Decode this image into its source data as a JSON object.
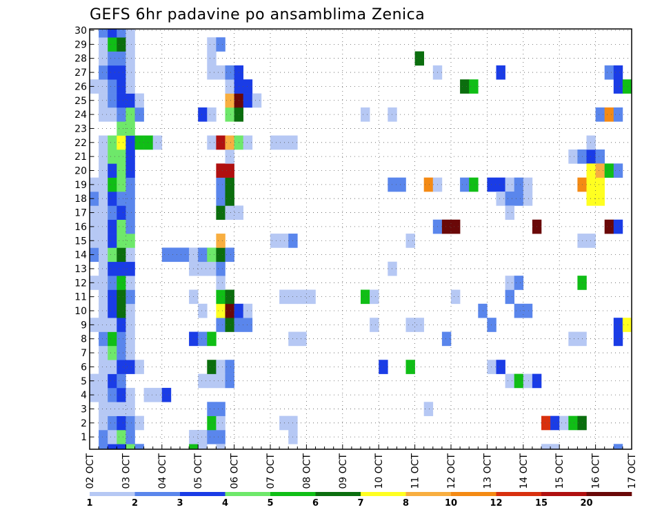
{
  "chart_data": {
    "type": "heatmap",
    "title": "GEFS 6hr padavine po ansamblima Zenica",
    "xlabel": "",
    "ylabel": "",
    "x_tick_labels": [
      "02 OCT",
      "03 OCT",
      "04 OCT",
      "05 OCT",
      "06 OCT",
      "07 OCT",
      "08 OCT",
      "09 OCT",
      "10 OCT",
      "11 OCT",
      "12 OCT",
      "13 OCT",
      "14 OCT",
      "15 OCT",
      "16 OCT",
      "17 OCT"
    ],
    "y_tick_labels": [
      "1",
      "2",
      "3",
      "4",
      "5",
      "6",
      "7",
      "8",
      "9",
      "10",
      "11",
      "12",
      "13",
      "14",
      "15",
      "16",
      "17",
      "18",
      "19",
      "20",
      "21",
      "22",
      "23",
      "24",
      "25",
      "26",
      "27",
      "28",
      "29",
      "30"
    ],
    "time_steps": 61,
    "members": 30,
    "colorbar": {
      "labels": [
        "1",
        "2",
        "3",
        "4",
        "5",
        "6",
        "7",
        "8",
        "10",
        "12",
        "15",
        "20"
      ],
      "colors": [
        "#b6c8f4",
        "#5a86ec",
        "#1a3ce6",
        "#6ee86a",
        "#10be16",
        "#0b6e0e",
        "#ffff20",
        "#f8ae40",
        "#f48a14",
        "#d8300e",
        "#b01010",
        "#6a0808"
      ]
    },
    "cells": [
      [
        0,
        1,
        1
      ],
      [
        0,
        2,
        2
      ],
      [
        0,
        3,
        2
      ],
      [
        0,
        4,
        3
      ],
      [
        0,
        5,
        1
      ],
      [
        1,
        1,
        1
      ],
      [
        1,
        2,
        0
      ],
      [
        1,
        3,
        3
      ],
      [
        1,
        4,
        1
      ],
      [
        2,
        1,
        0
      ],
      [
        2,
        2,
        1
      ],
      [
        2,
        3,
        2
      ],
      [
        2,
        4,
        1
      ],
      [
        2,
        5,
        0
      ],
      [
        3,
        1,
        0
      ],
      [
        3,
        2,
        0
      ],
      [
        3,
        3,
        0
      ],
      [
        3,
        4,
        0
      ],
      [
        4,
        0,
        0
      ],
      [
        4,
        1,
        0
      ],
      [
        4,
        2,
        1
      ],
      [
        4,
        3,
        2
      ],
      [
        4,
        4,
        0
      ],
      [
        5,
        0,
        0
      ],
      [
        5,
        1,
        0
      ],
      [
        5,
        2,
        2
      ],
      [
        5,
        3,
        1
      ],
      [
        6,
        1,
        0
      ],
      [
        6,
        2,
        0
      ],
      [
        6,
        3,
        2
      ],
      [
        6,
        4,
        2
      ],
      [
        6,
        5,
        0
      ],
      [
        7,
        1,
        0
      ],
      [
        7,
        2,
        3
      ],
      [
        7,
        3,
        1
      ],
      [
        7,
        4,
        0
      ],
      [
        8,
        1,
        1
      ],
      [
        8,
        2,
        4
      ],
      [
        8,
        3,
        1
      ],
      [
        8,
        4,
        0
      ],
      [
        9,
        0,
        0
      ],
      [
        9,
        1,
        0
      ],
      [
        9,
        2,
        0
      ],
      [
        9,
        3,
        2
      ],
      [
        9,
        4,
        0
      ],
      [
        10,
        1,
        0
      ],
      [
        10,
        2,
        2
      ],
      [
        10,
        3,
        5
      ],
      [
        10,
        4,
        0
      ],
      [
        11,
        1,
        0
      ],
      [
        11,
        2,
        2
      ],
      [
        11,
        3,
        5
      ],
      [
        11,
        4,
        1
      ],
      [
        12,
        0,
        0
      ],
      [
        12,
        1,
        0
      ],
      [
        12,
        2,
        1
      ],
      [
        12,
        3,
        4
      ],
      [
        12,
        4,
        0
      ],
      [
        13,
        1,
        0
      ],
      [
        13,
        2,
        2
      ],
      [
        13,
        3,
        2
      ],
      [
        13,
        4,
        2
      ],
      [
        14,
        0,
        1
      ],
      [
        14,
        1,
        0
      ],
      [
        14,
        2,
        3
      ],
      [
        14,
        3,
        5
      ],
      [
        14,
        4,
        0
      ],
      [
        15,
        0,
        0
      ],
      [
        15,
        1,
        0
      ],
      [
        15,
        2,
        2
      ],
      [
        15,
        3,
        3
      ],
      [
        15,
        4,
        3
      ],
      [
        16,
        0,
        0
      ],
      [
        16,
        1,
        0
      ],
      [
        16,
        2,
        2
      ],
      [
        16,
        3,
        3
      ],
      [
        16,
        4,
        1
      ],
      [
        17,
        0,
        0
      ],
      [
        17,
        1,
        0
      ],
      [
        17,
        2,
        1
      ],
      [
        17,
        3,
        2
      ],
      [
        17,
        4,
        1
      ],
      [
        18,
        0,
        1
      ],
      [
        18,
        1,
        0
      ],
      [
        18,
        2,
        2
      ],
      [
        18,
        3,
        1
      ],
      [
        18,
        4,
        1
      ],
      [
        19,
        0,
        0
      ],
      [
        19,
        1,
        0
      ],
      [
        19,
        2,
        4
      ],
      [
        19,
        3,
        3
      ],
      [
        19,
        4,
        1
      ],
      [
        20,
        1,
        0
      ],
      [
        20,
        2,
        2
      ],
      [
        20,
        3,
        3
      ],
      [
        20,
        4,
        2
      ],
      [
        21,
        1,
        0
      ],
      [
        21,
        2,
        3
      ],
      [
        21,
        3,
        3
      ],
      [
        21,
        4,
        2
      ],
      [
        22,
        1,
        0
      ],
      [
        22,
        2,
        3
      ],
      [
        22,
        3,
        6
      ],
      [
        22,
        4,
        2
      ],
      [
        22,
        5,
        4
      ],
      [
        22,
        6,
        4
      ],
      [
        22,
        7,
        0
      ],
      [
        23,
        3,
        3
      ],
      [
        23,
        4,
        3
      ],
      [
        24,
        1,
        0
      ],
      [
        24,
        2,
        0
      ],
      [
        24,
        3,
        1
      ],
      [
        24,
        4,
        3
      ],
      [
        24,
        5,
        1
      ],
      [
        25,
        1,
        0
      ],
      [
        25,
        2,
        1
      ],
      [
        25,
        3,
        2
      ],
      [
        25,
        4,
        2
      ],
      [
        25,
        5,
        0
      ],
      [
        26,
        0,
        0
      ],
      [
        26,
        1,
        0
      ],
      [
        26,
        2,
        1
      ],
      [
        26,
        3,
        2
      ],
      [
        26,
        4,
        0
      ],
      [
        27,
        1,
        1
      ],
      [
        27,
        2,
        2
      ],
      [
        27,
        3,
        2
      ],
      [
        27,
        4,
        0
      ],
      [
        28,
        1,
        0
      ],
      [
        28,
        2,
        1
      ],
      [
        28,
        3,
        1
      ],
      [
        28,
        4,
        0
      ],
      [
        29,
        1,
        0
      ],
      [
        29,
        2,
        4
      ],
      [
        29,
        3,
        5
      ],
      [
        29,
        4,
        0
      ],
      [
        30,
        1,
        1
      ],
      [
        30,
        2,
        2
      ],
      [
        30,
        3,
        1
      ],
      [
        30,
        4,
        0
      ],
      [
        14,
        8,
        1
      ],
      [
        14,
        9,
        1
      ],
      [
        14,
        10,
        1
      ],
      [
        0,
        11,
        4
      ],
      [
        0,
        12,
        0
      ],
      [
        1,
        11,
        0
      ],
      [
        1,
        12,
        0
      ],
      [
        1,
        13,
        1
      ],
      [
        1,
        14,
        1
      ],
      [
        2,
        13,
        4
      ],
      [
        2,
        14,
        0
      ],
      [
        3,
        13,
        1
      ],
      [
        3,
        14,
        1
      ],
      [
        4,
        6,
        0
      ],
      [
        4,
        7,
        0
      ],
      [
        4,
        8,
        2
      ],
      [
        5,
        12,
        0
      ],
      [
        5,
        13,
        0
      ],
      [
        5,
        14,
        0
      ],
      [
        5,
        15,
        1
      ],
      [
        6,
        13,
        5
      ],
      [
        6,
        14,
        0
      ],
      [
        6,
        15,
        1
      ],
      [
        8,
        11,
        2
      ],
      [
        8,
        12,
        1
      ],
      [
        8,
        13,
        4
      ],
      [
        9,
        14,
        1
      ],
      [
        9,
        15,
        5
      ],
      [
        9,
        16,
        1
      ],
      [
        9,
        17,
        1
      ],
      [
        10,
        12,
        0
      ],
      [
        10,
        14,
        6
      ],
      [
        10,
        15,
        11
      ],
      [
        10,
        16,
        2
      ],
      [
        10,
        17,
        0
      ],
      [
        11,
        11,
        0
      ],
      [
        11,
        14,
        4
      ],
      [
        11,
        15,
        5
      ],
      [
        12,
        14,
        0
      ],
      [
        13,
        11,
        0
      ],
      [
        13,
        12,
        0
      ],
      [
        13,
        13,
        0
      ],
      [
        13,
        14,
        1
      ],
      [
        14,
        11,
        0
      ],
      [
        14,
        12,
        1
      ],
      [
        14,
        13,
        3
      ],
      [
        14,
        14,
        5
      ],
      [
        14,
        15,
        1
      ],
      [
        15,
        14,
        7
      ],
      [
        17,
        14,
        5
      ],
      [
        17,
        15,
        0
      ],
      [
        17,
        16,
        0
      ],
      [
        18,
        14,
        1
      ],
      [
        18,
        15,
        5
      ],
      [
        19,
        14,
        1
      ],
      [
        19,
        15,
        5
      ],
      [
        20,
        14,
        10
      ],
      [
        20,
        15,
        10
      ],
      [
        21,
        15,
        0
      ],
      [
        22,
        13,
        0
      ],
      [
        22,
        14,
        10
      ],
      [
        22,
        15,
        7
      ],
      [
        22,
        16,
        3
      ],
      [
        22,
        17,
        0
      ],
      [
        24,
        12,
        2
      ],
      [
        24,
        13,
        0
      ],
      [
        24,
        15,
        3
      ],
      [
        24,
        16,
        5
      ],
      [
        25,
        15,
        7
      ],
      [
        25,
        16,
        11
      ],
      [
        25,
        17,
        2
      ],
      [
        25,
        18,
        0
      ],
      [
        26,
        15,
        0
      ],
      [
        26,
        16,
        2
      ],
      [
        26,
        17,
        2
      ],
      [
        27,
        13,
        0
      ],
      [
        27,
        14,
        0
      ],
      [
        27,
        15,
        1
      ],
      [
        27,
        16,
        2
      ],
      [
        28,
        13,
        0
      ],
      [
        29,
        13,
        0
      ],
      [
        29,
        14,
        1
      ],
      [
        0,
        12,
        0
      ],
      [
        0,
        14,
        0
      ],
      [
        2,
        21,
        0
      ],
      [
        2,
        22,
        0
      ],
      [
        15,
        20,
        0
      ],
      [
        15,
        21,
        0
      ],
      [
        15,
        22,
        1
      ],
      [
        8,
        22,
        0
      ],
      [
        8,
        23,
        0
      ],
      [
        11,
        21,
        0
      ],
      [
        11,
        22,
        0
      ],
      [
        11,
        23,
        0
      ],
      [
        11,
        24,
        0
      ],
      [
        22,
        20,
        0
      ],
      [
        22,
        21,
        0
      ],
      [
        22,
        22,
        0
      ],
      [
        1,
        22,
        0
      ],
      [
        24,
        30,
        0
      ],
      [
        11,
        30,
        4
      ],
      [
        11,
        31,
        0
      ],
      [
        9,
        31,
        0
      ],
      [
        6,
        32,
        2
      ],
      [
        13,
        33,
        0
      ],
      [
        24,
        33,
        0
      ],
      [
        19,
        33,
        1
      ],
      [
        19,
        34,
        1
      ],
      [
        3,
        37,
        0
      ],
      [
        6,
        35,
        4
      ],
      [
        9,
        35,
        0
      ],
      [
        9,
        36,
        0
      ],
      [
        15,
        35,
        0
      ],
      [
        19,
        37,
        8
      ],
      [
        19,
        38,
        0
      ],
      [
        28,
        36,
        5
      ],
      [
        27,
        38,
        0
      ],
      [
        16,
        38,
        1
      ],
      [
        16,
        39,
        11
      ],
      [
        16,
        40,
        11
      ],
      [
        8,
        39,
        1
      ],
      [
        11,
        40,
        0
      ],
      [
        19,
        41,
        1
      ],
      [
        19,
        42,
        4
      ],
      [
        26,
        41,
        5
      ],
      [
        26,
        42,
        4
      ],
      [
        6,
        44,
        0
      ],
      [
        6,
        45,
        2
      ],
      [
        10,
        43,
        1
      ],
      [
        19,
        44,
        2
      ],
      [
        19,
        45,
        2
      ],
      [
        19,
        46,
        0
      ],
      [
        19,
        47,
        1
      ],
      [
        19,
        48,
        0
      ],
      [
        27,
        45,
        2
      ],
      [
        9,
        44,
        1
      ],
      [
        18,
        45,
        0
      ],
      [
        18,
        46,
        1
      ],
      [
        18,
        47,
        1
      ],
      [
        17,
        46,
        0
      ],
      [
        5,
        46,
        0
      ],
      [
        5,
        47,
        4
      ],
      [
        5,
        48,
        0
      ],
      [
        5,
        49,
        2
      ],
      [
        11,
        46,
        1
      ],
      [
        10,
        47,
        1
      ],
      [
        10,
        48,
        1
      ],
      [
        12,
        46,
        0
      ],
      [
        12,
        47,
        1
      ],
      [
        16,
        49,
        11
      ],
      [
        2,
        50,
        9
      ],
      [
        2,
        51,
        2
      ],
      [
        2,
        52,
        0
      ],
      [
        2,
        53,
        4
      ],
      [
        2,
        54,
        5
      ],
      [
        8,
        53,
        0
      ],
      [
        8,
        54,
        0
      ],
      [
        21,
        53,
        0
      ],
      [
        21,
        54,
        1
      ],
      [
        21,
        55,
        2
      ],
      [
        21,
        56,
        1
      ],
      [
        18,
        48,
        0
      ],
      [
        24,
        56,
        1
      ],
      [
        24,
        57,
        8
      ],
      [
        24,
        58,
        1
      ],
      [
        22,
        55,
        0
      ],
      [
        12,
        54,
        4
      ],
      [
        15,
        54,
        0
      ],
      [
        15,
        55,
        0
      ],
      [
        19,
        54,
        8
      ],
      [
        19,
        55,
        6
      ],
      [
        19,
        56,
        6
      ],
      [
        20,
        55,
        6
      ],
      [
        20,
        56,
        7
      ],
      [
        20,
        57,
        4
      ],
      [
        20,
        58,
        1
      ],
      [
        18,
        55,
        6
      ],
      [
        18,
        56,
        6
      ],
      [
        16,
        57,
        11
      ],
      [
        16,
        58,
        2
      ],
      [
        27,
        57,
        1
      ],
      [
        27,
        58,
        2
      ],
      [
        26,
        58,
        2
      ],
      [
        26,
        59,
        4
      ],
      [
        9,
        58,
        2
      ],
      [
        9,
        59,
        6
      ],
      [
        8,
        58,
        2
      ],
      [
        0,
        50,
        0
      ],
      [
        0,
        51,
        0
      ],
      [
        0,
        58,
        1
      ]
    ]
  }
}
